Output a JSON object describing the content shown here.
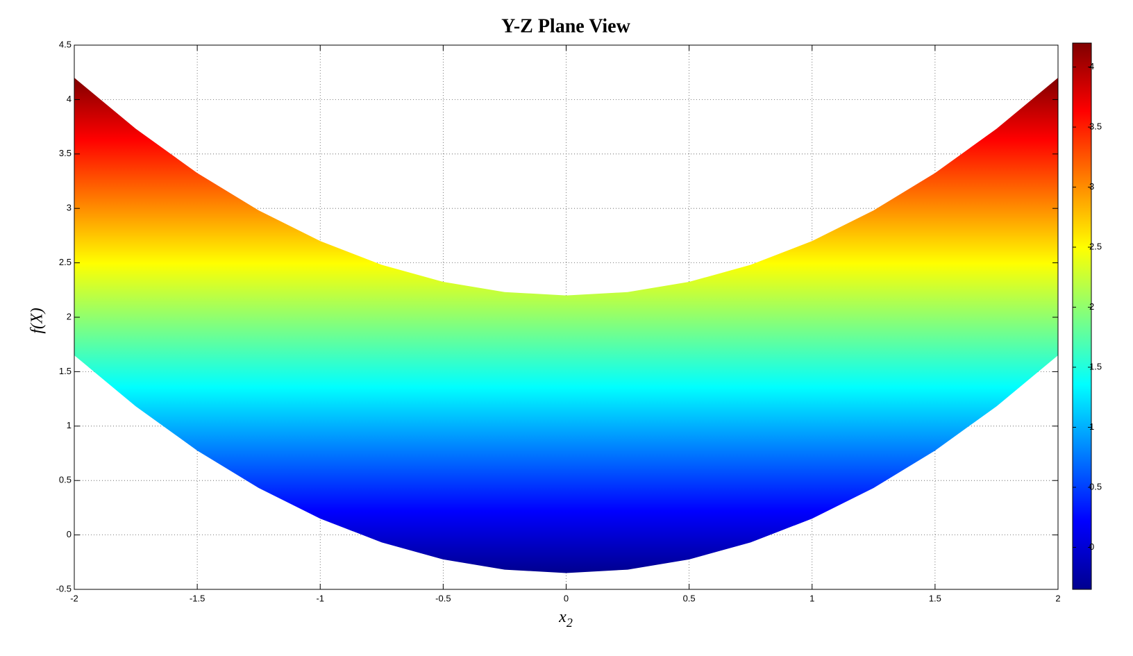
{
  "chart_data": {
    "type": "band",
    "title": "Y-Z Plane View",
    "xlabel": "x",
    "xlabel_subscript": "2",
    "ylabel": "f(X)",
    "x": [
      -2,
      -1.75,
      -1.5,
      -1.25,
      -1,
      -0.75,
      -0.5,
      -0.25,
      0,
      0.25,
      0.5,
      0.75,
      1,
      1.25,
      1.5,
      1.75,
      2
    ],
    "series": [
      {
        "values": [
          4.2,
          3.73125,
          3.325,
          2.98125,
          2.7,
          2.48125,
          2.325,
          2.23125,
          2.2,
          2.23125,
          2.325,
          2.48125,
          2.7,
          2.98125,
          3.325,
          3.73125,
          4.2
        ]
      },
      {
        "values": [
          1.65,
          1.18125,
          0.775,
          0.43125,
          0.15,
          -0.06875,
          -0.225,
          -0.31875,
          -0.35,
          -0.31875,
          -0.225,
          -0.06875,
          0.15,
          0.43125,
          0.775,
          1.18125,
          1.65
        ]
      }
    ],
    "colormap": "jet",
    "xlim": [
      -2,
      2
    ],
    "xticks": [
      -2,
      -1.5,
      -1,
      -0.5,
      0,
      0.5,
      1,
      1.5,
      2
    ],
    "ylim": [
      -0.5,
      4.5
    ],
    "yticks": [
      -0.5,
      0,
      0.5,
      1,
      1.5,
      2,
      2.5,
      3,
      3.5,
      4,
      4.5
    ],
    "grid": true,
    "colorbar": {
      "lim": [
        -0.35,
        4.2
      ],
      "ticks": [
        0,
        0.5,
        1,
        1.5,
        2,
        2.5,
        3,
        3.5,
        4
      ]
    }
  }
}
